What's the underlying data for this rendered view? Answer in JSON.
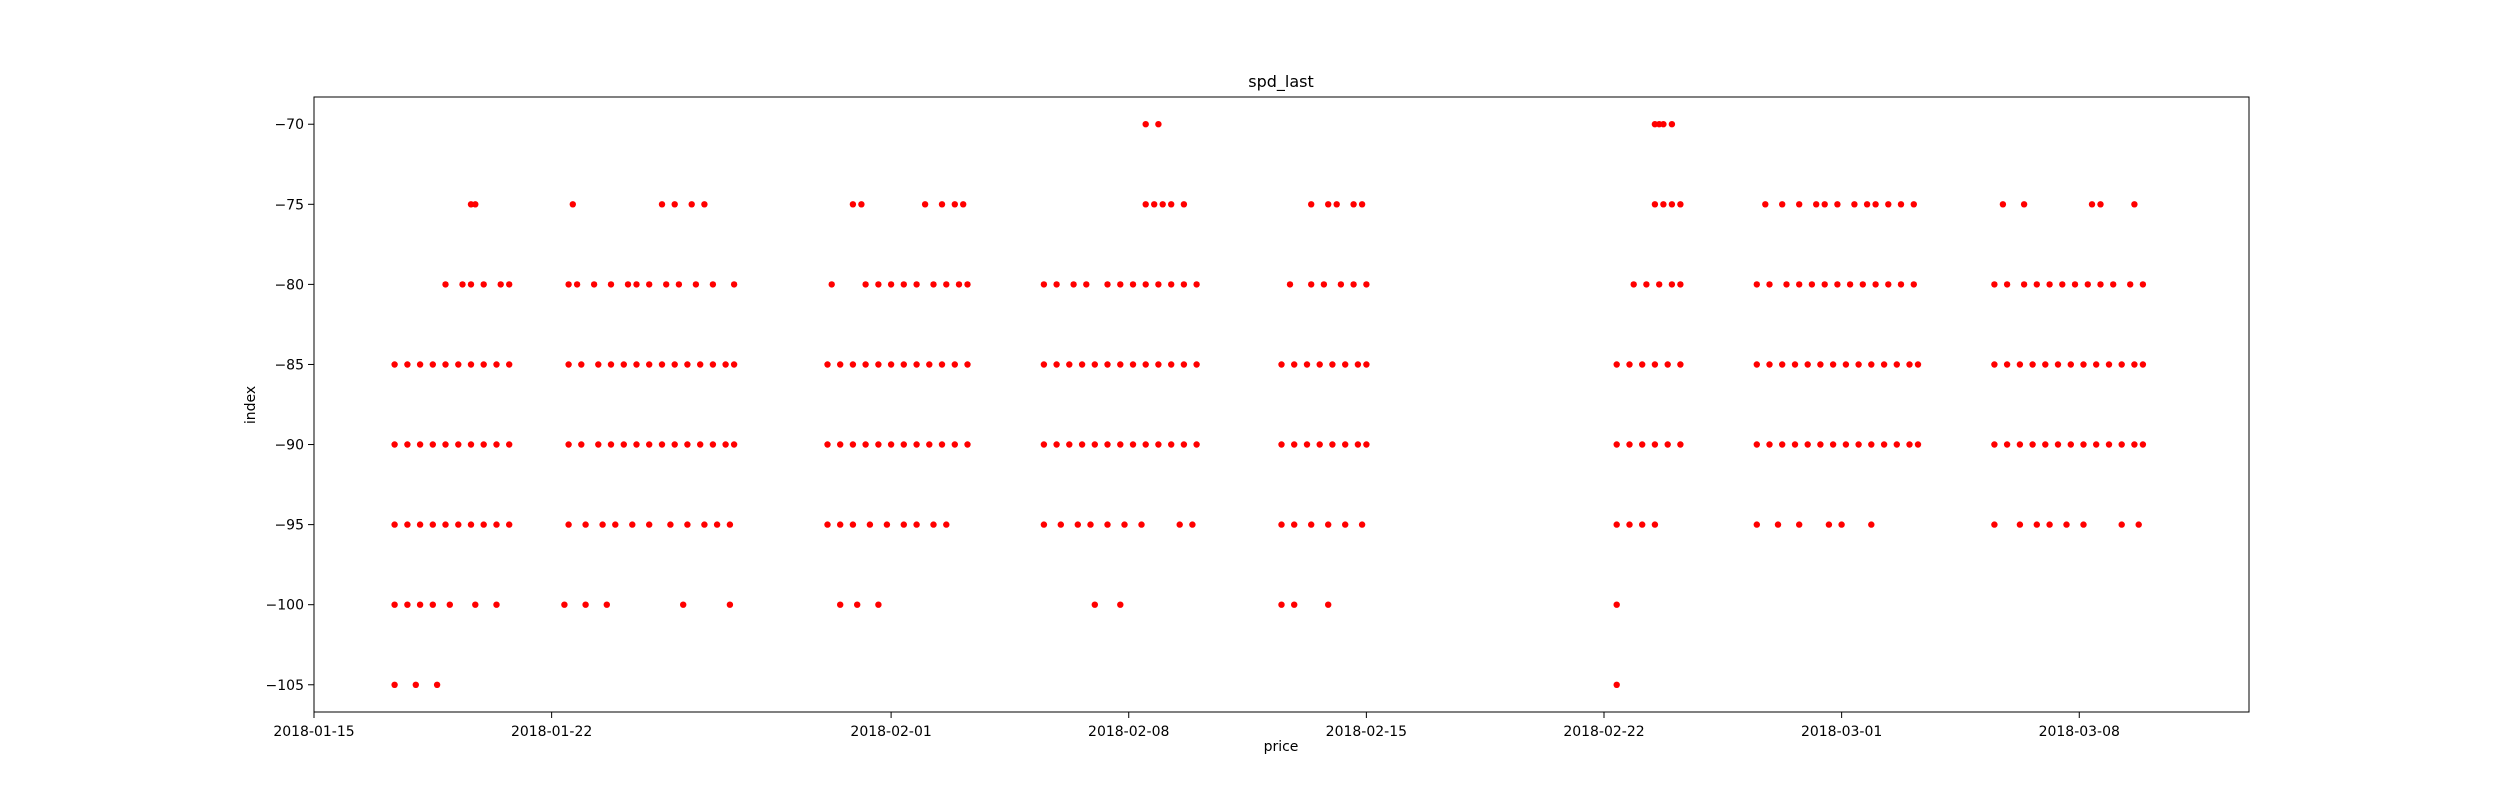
{
  "chart_data": {
    "type": "scatter",
    "title": "spd_last",
    "xlabel": "price",
    "ylabel": "index",
    "x_is_date": true,
    "xlim": [
      "2018-01-15",
      "2018-03-13"
    ],
    "ylim": [
      -106.7,
      -68.3
    ],
    "x_ticks": [
      "2018-01-15",
      "2018-01-22",
      "2018-02-01",
      "2018-02-08",
      "2018-02-15",
      "2018-02-22",
      "2018-03-01",
      "2018-03-08"
    ],
    "y_ticks": [
      -70,
      -75,
      -80,
      -85,
      -90,
      -95,
      -100,
      -105
    ],
    "grid": false,
    "legend": "none",
    "marker_color": "#ff0000",
    "points_by_level": [
      {
        "y": -70,
        "x": [
          "2018-02-08T12:00",
          "2018-02-08T21:00",
          "2018-02-23T12:00",
          "2018-02-23T15:00",
          "2018-02-23T18:00",
          "2018-02-24T00:00"
        ]
      },
      {
        "y": -75,
        "x": [
          "2018-01-19T15:00",
          "2018-01-19T18:00",
          "2018-01-22T15:00",
          "2018-01-25T06:00",
          "2018-01-25T15:00",
          "2018-01-26T03:00",
          "2018-01-26T12:00",
          "2018-01-30T21:00",
          "2018-01-31T03:00",
          "2018-02-02T00:00",
          "2018-02-02T12:00",
          "2018-02-02T21:00",
          "2018-02-03T03:00",
          "2018-02-08T12:00",
          "2018-02-08T18:00",
          "2018-02-09T00:00",
          "2018-02-09T06:00",
          "2018-02-09T15:00",
          "2018-02-13T09:00",
          "2018-02-13T21:00",
          "2018-02-14T03:00",
          "2018-02-14T15:00",
          "2018-02-14T21:00",
          "2018-02-23T12:00",
          "2018-02-23T18:00",
          "2018-02-24T00:00",
          "2018-02-24T06:00",
          "2018-02-26T18:00",
          "2018-02-27T06:00",
          "2018-02-27T18:00",
          "2018-02-28T06:00",
          "2018-02-28T12:00",
          "2018-02-28T21:00",
          "2018-03-01T09:00",
          "2018-03-01T18:00",
          "2018-03-02T00:00",
          "2018-03-02T09:00",
          "2018-03-02T18:00",
          "2018-03-03T03:00",
          "2018-03-05T18:00",
          "2018-03-06T09:00",
          "2018-03-08T09:00",
          "2018-03-08T15:00",
          "2018-03-09T15:00"
        ]
      },
      {
        "y": -80,
        "x": [
          "2018-01-18T21:00",
          "2018-01-19T09:00",
          "2018-01-19T15:00",
          "2018-01-20T00:00",
          "2018-01-20T12:00",
          "2018-01-20T18:00",
          "2018-01-22T12:00",
          "2018-01-22T18:00",
          "2018-01-23T06:00",
          "2018-01-23T18:00",
          "2018-01-24T06:00",
          "2018-01-24T12:00",
          "2018-01-24T21:00",
          "2018-01-25T09:00",
          "2018-01-25T18:00",
          "2018-01-26T06:00",
          "2018-01-26T18:00",
          "2018-01-27T09:00",
          "2018-01-30T06:00",
          "2018-01-31T06:00",
          "2018-01-31T15:00",
          "2018-02-01T00:00",
          "2018-02-01T09:00",
          "2018-02-01T18:00",
          "2018-02-02T06:00",
          "2018-02-02T15:00",
          "2018-02-03T00:00",
          "2018-02-03T06:00",
          "2018-02-05T12:00",
          "2018-02-05T21:00",
          "2018-02-06T09:00",
          "2018-02-06T18:00",
          "2018-02-07T09:00",
          "2018-02-07T18:00",
          "2018-02-08T03:00",
          "2018-02-08T12:00",
          "2018-02-08T21:00",
          "2018-02-09T06:00",
          "2018-02-09T15:00",
          "2018-02-10T00:00",
          "2018-02-12T18:00",
          "2018-02-13T09:00",
          "2018-02-13T18:00",
          "2018-02-14T06:00",
          "2018-02-14T15:00",
          "2018-02-15T00:00",
          "2018-02-22T21:00",
          "2018-02-23T06:00",
          "2018-02-23T15:00",
          "2018-02-24T00:00",
          "2018-02-24T06:00",
          "2018-02-26T12:00",
          "2018-02-26T21:00",
          "2018-02-27T09:00",
          "2018-02-27T18:00",
          "2018-02-28T03:00",
          "2018-02-28T12:00",
          "2018-02-28T21:00",
          "2018-03-01T06:00",
          "2018-03-01T15:00",
          "2018-03-02T00:00",
          "2018-03-02T09:00",
          "2018-03-02T18:00",
          "2018-03-03T03:00",
          "2018-03-05T12:00",
          "2018-03-05T21:00",
          "2018-03-06T09:00",
          "2018-03-06T18:00",
          "2018-03-07T03:00",
          "2018-03-07T12:00",
          "2018-03-07T21:00",
          "2018-03-08T06:00",
          "2018-03-08T15:00",
          "2018-03-09T00:00",
          "2018-03-09T12:00",
          "2018-03-09T21:00"
        ]
      },
      {
        "y": -85,
        "x": [
          "2018-01-17T09:00",
          "2018-01-17T18:00",
          "2018-01-18T03:00",
          "2018-01-18T12:00",
          "2018-01-18T21:00",
          "2018-01-19T06:00",
          "2018-01-19T15:00",
          "2018-01-20T00:00",
          "2018-01-20T09:00",
          "2018-01-20T18:00",
          "2018-01-22T12:00",
          "2018-01-22T21:00",
          "2018-01-23T09:00",
          "2018-01-23T18:00",
          "2018-01-24T03:00",
          "2018-01-24T12:00",
          "2018-01-24T21:00",
          "2018-01-25T06:00",
          "2018-01-25T15:00",
          "2018-01-26T00:00",
          "2018-01-26T09:00",
          "2018-01-26T18:00",
          "2018-01-27T03:00",
          "2018-01-27T09:00",
          "2018-01-30T03:00",
          "2018-01-30T12:00",
          "2018-01-30T21:00",
          "2018-01-31T06:00",
          "2018-01-31T15:00",
          "2018-02-01T00:00",
          "2018-02-01T09:00",
          "2018-02-01T18:00",
          "2018-02-02T03:00",
          "2018-02-02T12:00",
          "2018-02-02T21:00",
          "2018-02-03T06:00",
          "2018-02-05T12:00",
          "2018-02-05T21:00",
          "2018-02-06T06:00",
          "2018-02-06T15:00",
          "2018-02-07T00:00",
          "2018-02-07T09:00",
          "2018-02-07T18:00",
          "2018-02-08T03:00",
          "2018-02-08T12:00",
          "2018-02-08T21:00",
          "2018-02-09T06:00",
          "2018-02-09T15:00",
          "2018-02-10T00:00",
          "2018-02-12T12:00",
          "2018-02-12T21:00",
          "2018-02-13T06:00",
          "2018-02-13T15:00",
          "2018-02-14T00:00",
          "2018-02-14T09:00",
          "2018-02-14T18:00",
          "2018-02-15T00:00",
          "2018-02-22T09:00",
          "2018-02-22T18:00",
          "2018-02-23T03:00",
          "2018-02-23T12:00",
          "2018-02-23T21:00",
          "2018-02-24T06:00",
          "2018-02-26T12:00",
          "2018-02-26T21:00",
          "2018-02-27T06:00",
          "2018-02-27T15:00",
          "2018-02-28T00:00",
          "2018-02-28T09:00",
          "2018-02-28T18:00",
          "2018-03-01T03:00",
          "2018-03-01T12:00",
          "2018-03-01T21:00",
          "2018-03-02T06:00",
          "2018-03-02T15:00",
          "2018-03-03T00:00",
          "2018-03-03T06:00",
          "2018-03-05T12:00",
          "2018-03-05T21:00",
          "2018-03-06T06:00",
          "2018-03-06T15:00",
          "2018-03-07T00:00",
          "2018-03-07T09:00",
          "2018-03-07T18:00",
          "2018-03-08T03:00",
          "2018-03-08T12:00",
          "2018-03-08T21:00",
          "2018-03-09T06:00",
          "2018-03-09T15:00",
          "2018-03-09T21:00"
        ]
      },
      {
        "y": -90,
        "x": [
          "2018-01-17T09:00",
          "2018-01-17T18:00",
          "2018-01-18T03:00",
          "2018-01-18T12:00",
          "2018-01-18T21:00",
          "2018-01-19T06:00",
          "2018-01-19T15:00",
          "2018-01-20T00:00",
          "2018-01-20T09:00",
          "2018-01-20T18:00",
          "2018-01-22T12:00",
          "2018-01-22T21:00",
          "2018-01-23T09:00",
          "2018-01-23T18:00",
          "2018-01-24T03:00",
          "2018-01-24T12:00",
          "2018-01-24T21:00",
          "2018-01-25T06:00",
          "2018-01-25T15:00",
          "2018-01-26T00:00",
          "2018-01-26T09:00",
          "2018-01-26T18:00",
          "2018-01-27T03:00",
          "2018-01-27T09:00",
          "2018-01-30T03:00",
          "2018-01-30T12:00",
          "2018-01-30T21:00",
          "2018-01-31T06:00",
          "2018-01-31T15:00",
          "2018-02-01T00:00",
          "2018-02-01T09:00",
          "2018-02-01T18:00",
          "2018-02-02T03:00",
          "2018-02-02T12:00",
          "2018-02-02T21:00",
          "2018-02-03T06:00",
          "2018-02-05T12:00",
          "2018-02-05T21:00",
          "2018-02-06T06:00",
          "2018-02-06T15:00",
          "2018-02-07T00:00",
          "2018-02-07T09:00",
          "2018-02-07T18:00",
          "2018-02-08T03:00",
          "2018-02-08T12:00",
          "2018-02-08T21:00",
          "2018-02-09T06:00",
          "2018-02-09T15:00",
          "2018-02-10T00:00",
          "2018-02-12T12:00",
          "2018-02-12T21:00",
          "2018-02-13T06:00",
          "2018-02-13T15:00",
          "2018-02-14T00:00",
          "2018-02-14T09:00",
          "2018-02-14T18:00",
          "2018-02-15T00:00",
          "2018-02-22T09:00",
          "2018-02-22T18:00",
          "2018-02-23T03:00",
          "2018-02-23T12:00",
          "2018-02-23T21:00",
          "2018-02-24T06:00",
          "2018-02-26T12:00",
          "2018-02-26T21:00",
          "2018-02-27T06:00",
          "2018-02-27T15:00",
          "2018-02-28T00:00",
          "2018-02-28T09:00",
          "2018-02-28T18:00",
          "2018-03-01T03:00",
          "2018-03-01T12:00",
          "2018-03-01T21:00",
          "2018-03-02T06:00",
          "2018-03-02T15:00",
          "2018-03-03T00:00",
          "2018-03-03T06:00",
          "2018-03-05T12:00",
          "2018-03-05T21:00",
          "2018-03-06T06:00",
          "2018-03-06T15:00",
          "2018-03-07T00:00",
          "2018-03-07T09:00",
          "2018-03-07T18:00",
          "2018-03-08T03:00",
          "2018-03-08T12:00",
          "2018-03-08T21:00",
          "2018-03-09T06:00",
          "2018-03-09T15:00",
          "2018-03-09T21:00"
        ]
      },
      {
        "y": -95,
        "x": [
          "2018-01-17T09:00",
          "2018-01-17T18:00",
          "2018-01-18T03:00",
          "2018-01-18T12:00",
          "2018-01-18T21:00",
          "2018-01-19T06:00",
          "2018-01-19T15:00",
          "2018-01-20T00:00",
          "2018-01-20T09:00",
          "2018-01-20T18:00",
          "2018-01-22T12:00",
          "2018-01-23T00:00",
          "2018-01-23T12:00",
          "2018-01-23T21:00",
          "2018-01-24T09:00",
          "2018-01-24T21:00",
          "2018-01-25T12:00",
          "2018-01-26T00:00",
          "2018-01-26T12:00",
          "2018-01-26T21:00",
          "2018-01-27T06:00",
          "2018-01-30T03:00",
          "2018-01-30T12:00",
          "2018-01-30T21:00",
          "2018-01-31T09:00",
          "2018-01-31T21:00",
          "2018-02-01T09:00",
          "2018-02-01T18:00",
          "2018-02-02T06:00",
          "2018-02-02T15:00",
          "2018-02-05T12:00",
          "2018-02-06T00:00",
          "2018-02-06T12:00",
          "2018-02-06T21:00",
          "2018-02-07T09:00",
          "2018-02-07T21:00",
          "2018-02-08T09:00",
          "2018-02-09T12:00",
          "2018-02-09T21:00",
          "2018-02-12T12:00",
          "2018-02-12T21:00",
          "2018-02-13T09:00",
          "2018-02-13T21:00",
          "2018-02-14T09:00",
          "2018-02-14T21:00",
          "2018-02-22T09:00",
          "2018-02-22T18:00",
          "2018-02-23T03:00",
          "2018-02-23T12:00",
          "2018-02-26T12:00",
          "2018-02-27T03:00",
          "2018-02-27T18:00",
          "2018-02-28T15:00",
          "2018-03-01T00:00",
          "2018-03-01T21:00",
          "2018-03-05T12:00",
          "2018-03-06T06:00",
          "2018-03-06T18:00",
          "2018-03-07T03:00",
          "2018-03-07T15:00",
          "2018-03-08T03:00",
          "2018-03-09T06:00",
          "2018-03-09T18:00"
        ]
      },
      {
        "y": -100,
        "x": [
          "2018-01-17T09:00",
          "2018-01-17T18:00",
          "2018-01-18T03:00",
          "2018-01-18T12:00",
          "2018-01-19T00:00",
          "2018-01-19T18:00",
          "2018-01-20T09:00",
          "2018-01-22T09:00",
          "2018-01-23T00:00",
          "2018-01-23T15:00",
          "2018-01-25T21:00",
          "2018-01-27T06:00",
          "2018-01-30T12:00",
          "2018-01-31T00:00",
          "2018-01-31T15:00",
          "2018-02-07T00:00",
          "2018-02-07T18:00",
          "2018-02-12T12:00",
          "2018-02-12T21:00",
          "2018-02-13T21:00",
          "2018-02-22T09:00"
        ]
      },
      {
        "y": -105,
        "x": [
          "2018-01-17T09:00",
          "2018-01-18T00:00",
          "2018-01-18T15:00",
          "2018-02-22T09:00"
        ]
      }
    ]
  }
}
